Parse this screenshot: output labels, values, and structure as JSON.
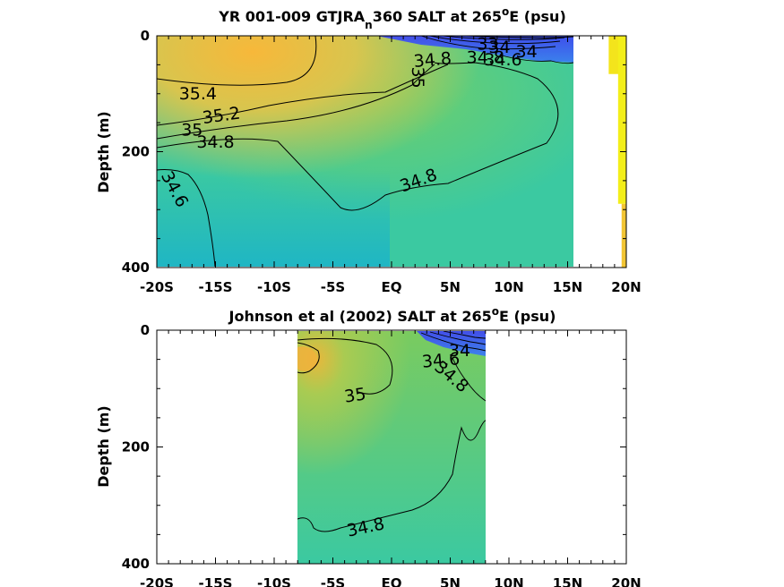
{
  "chart_data": [
    {
      "type": "heatmap",
      "title_parts": [
        "YR 001-009 GTJRA",
        "n",
        "360 SALT at 265",
        "o",
        "E (psu)"
      ],
      "ylabel": "Depth (m)",
      "xticks": [
        "-20S",
        "-15S",
        "-10S",
        "-5S",
        "EQ",
        "5N",
        "10N",
        "15N",
        "20N"
      ],
      "xvals": [
        -20,
        -15,
        -10,
        -5,
        0,
        5,
        10,
        15,
        20
      ],
      "yticks": [
        "0",
        "200",
        "400"
      ],
      "yvals": [
        0,
        200,
        400
      ],
      "xlim": [
        -20,
        20
      ],
      "ylim": [
        0,
        400
      ],
      "y_reversed": true,
      "data_extent_lat": [
        -20,
        15.3
      ],
      "contour_labels": [
        {
          "text": "35.4",
          "lat": -16.5,
          "depth": 100,
          "rot": 0
        },
        {
          "text": "35.2",
          "lat": -14.5,
          "depth": 138,
          "rot": -8
        },
        {
          "text": "35",
          "lat": -17,
          "depth": 163,
          "rot": 0
        },
        {
          "text": "34.8",
          "lat": -15,
          "depth": 184,
          "rot": 0
        },
        {
          "text": "34.6",
          "lat": -18.5,
          "depth": 265,
          "rot": 62
        },
        {
          "text": "35",
          "lat": 2.2,
          "depth": 72,
          "rot": 90
        },
        {
          "text": "34.8",
          "lat": 3.5,
          "depth": 42,
          "rot": -5
        },
        {
          "text": "34.8",
          "lat": 2.3,
          "depth": 250,
          "rot": -20
        },
        {
          "text": "33",
          "lat": 8.2,
          "depth": 15,
          "rot": 0
        },
        {
          "text": "34",
          "lat": 9.2,
          "depth": 20,
          "rot": 0
        },
        {
          "text": "34.8",
          "lat": 8,
          "depth": 38,
          "rot": 0
        },
        {
          "text": "34.6",
          "lat": 9.5,
          "depth": 42,
          "rot": 0
        },
        {
          "text": "34",
          "lat": 11.5,
          "depth": 28,
          "rot": 0
        }
      ],
      "sidebar_bars": [
        {
          "lat": 18.5,
          "depth": [
            0,
            66
          ],
          "color": "#f3e41c"
        },
        {
          "lat": 19.3,
          "depth": [
            0,
            290
          ],
          "color": "#f3ee1a"
        },
        {
          "lat": 19.6,
          "depth": [
            290,
            400
          ],
          "color": "#f2c534"
        }
      ]
    },
    {
      "type": "heatmap",
      "title_parts": [
        "Johnson et al (2002) SALT at 265",
        "o",
        "E (psu)"
      ],
      "ylabel": "Depth (m)",
      "xticks": [
        "-20S",
        "-15S",
        "-10S",
        "-5S",
        "EQ",
        "5N",
        "10N",
        "15N",
        "20N"
      ],
      "xvals": [
        -20,
        -15,
        -10,
        -5,
        0,
        5,
        10,
        15,
        20
      ],
      "yticks": [
        "0",
        "200",
        "400"
      ],
      "yvals": [
        0,
        200,
        400
      ],
      "xlim": [
        -20,
        20
      ],
      "ylim": [
        0,
        400
      ],
      "y_reversed": true,
      "data_extent_lat": [
        -8,
        8
      ],
      "contour_labels": [
        {
          "text": "35",
          "lat": -3.1,
          "depth": 112,
          "rot": -8
        },
        {
          "text": "34.6",
          "lat": 4.2,
          "depth": 52,
          "rot": -5
        },
        {
          "text": "34",
          "lat": 5.8,
          "depth": 35,
          "rot": 0
        },
        {
          "text": "34.8",
          "lat": 5.1,
          "depth": 80,
          "rot": 40
        },
        {
          "text": "34.8",
          "lat": -2.2,
          "depth": 338,
          "rot": -12
        }
      ]
    }
  ],
  "colors": {
    "high_salt": "#f7b83a",
    "mid_salt": "#6fcf6a",
    "base_salt": "#3bc9a1",
    "low_salt": "#1fb6c4",
    "fresh": "#3f48f0",
    "contour": "#000000"
  }
}
